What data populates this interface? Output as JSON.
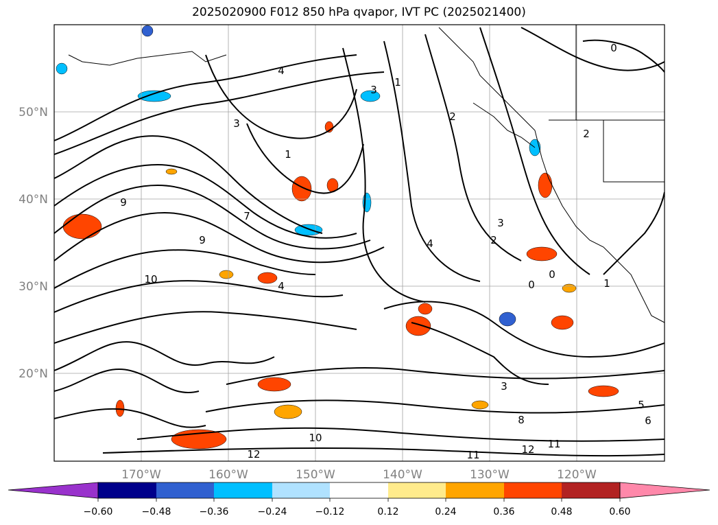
{
  "title": "2025020900 F012 850 hPa qvapor, IVT PC (2025021400)",
  "lat_labels": [
    "50°N",
    "40°N",
    "30°N",
    "20°N"
  ],
  "lon_labels": [
    "170°W",
    "160°W",
    "150°W",
    "140°W",
    "130°W",
    "120°W"
  ],
  "colorbar": {
    "tick_labels": [
      "-0.60",
      "-0.48",
      "-0.36",
      "-0.24",
      "-0.12",
      "0.12",
      "0.24",
      "0.36",
      "0.48",
      "0.60"
    ],
    "colors": [
      "#9932cc",
      "#00008b",
      "#3060d0",
      "#00bfff",
      "#b0e2ff",
      "#ffffff",
      "#ffeb8c",
      "#ffa500",
      "#ff4500",
      "#b22222",
      "#ff88aa"
    ]
  },
  "contour_labels": [
    "1",
    "2",
    "3",
    "4",
    "0",
    "9",
    "10",
    "1",
    "2",
    "3",
    "4",
    "0",
    "5",
    "6",
    "8",
    "10",
    "11",
    "12",
    "4",
    "3",
    "1",
    "2",
    "3",
    "9",
    "7",
    "0",
    "11",
    "12"
  ],
  "colors": {
    "frame": "#000000",
    "contour": "#000000",
    "grid": "#a0a0a0"
  }
}
